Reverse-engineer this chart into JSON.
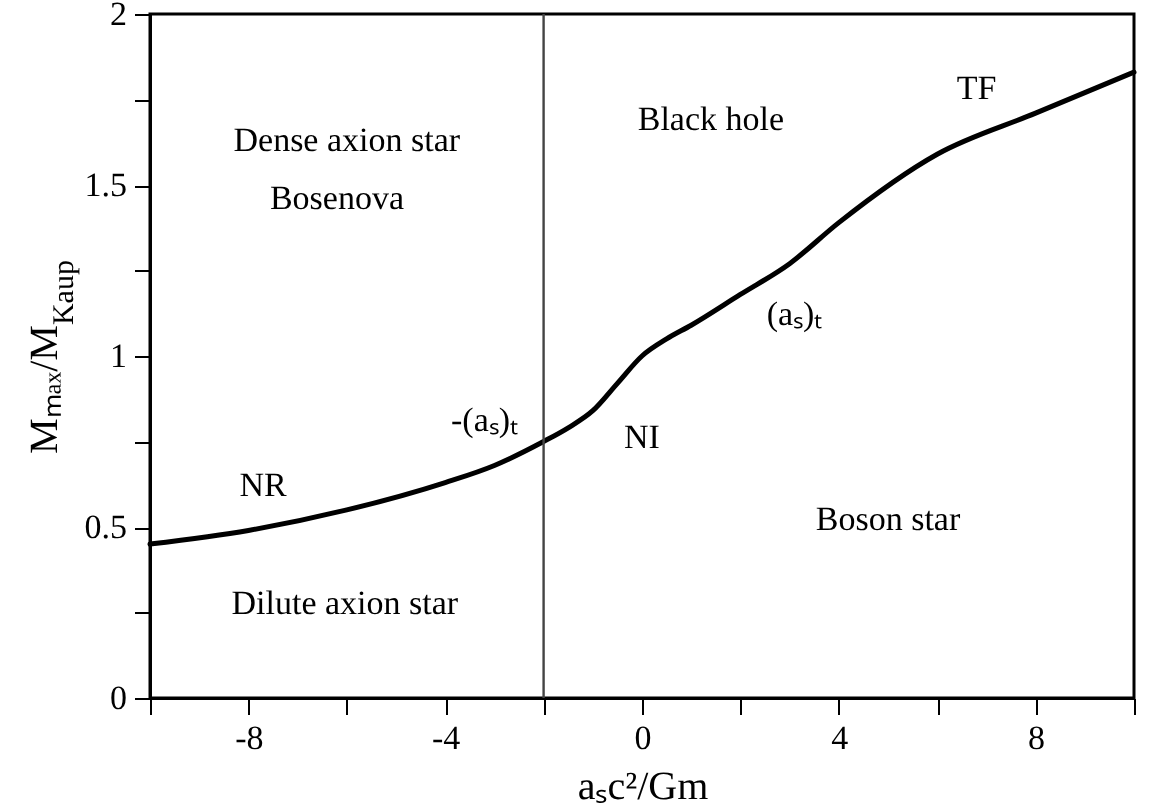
{
  "chart_data": {
    "type": "line",
    "xlabel": "aₛc²/Gm",
    "ylabel": "Mₘₐₓ/M$_{Kaup}$",
    "x": [
      -10,
      -8,
      -6,
      -4,
      -3,
      -2,
      -1.5,
      -1,
      -0.5,
      0,
      0.5,
      1,
      2,
      3,
      4,
      6,
      8,
      10
    ],
    "series": [
      {
        "color": "#000000",
        "values": [
          0.45,
          0.49,
          0.55,
          0.63,
          0.68,
          0.75,
          0.79,
          0.84,
          0.92,
          1.0,
          1.05,
          1.09,
          1.18,
          1.27,
          1.39,
          1.59,
          1.71,
          1.83
        ]
      }
    ],
    "xlim": [
      -10,
      10
    ],
    "xticks": [
      {
        "value": -10,
        "label": null
      },
      -8,
      {
        "value": -6,
        "label": null
      },
      -4,
      {
        "value": -2,
        "label": null
      },
      0,
      {
        "value": 2,
        "label": null
      },
      4,
      {
        "value": 6,
        "label": null
      },
      8,
      {
        "value": 10,
        "label": null
      }
    ],
    "ylim": [
      0,
      2
    ],
    "yticks": [
      0,
      {
        "value": 0.25,
        "label": null
      },
      0.5,
      {
        "value": 0.75,
        "label": null
      },
      1,
      {
        "value": 1.25,
        "label": null
      },
      1.5,
      {
        "value": 1.75,
        "label": null
      },
      2
    ],
    "ref_lines": [
      {
        "axis": "x",
        "value": -2,
        "color": "#444444"
      }
    ],
    "annotations": [
      "Dense axion star",
      "Bosenova",
      "Black hole",
      "TF",
      "(aₛ)ₜ",
      "-(aₛ)ₜ",
      "NI",
      "NR",
      "Boson star",
      "Dilute axion star"
    ],
    "grid": false,
    "marker": "none",
    "line_style": "solid"
  }
}
